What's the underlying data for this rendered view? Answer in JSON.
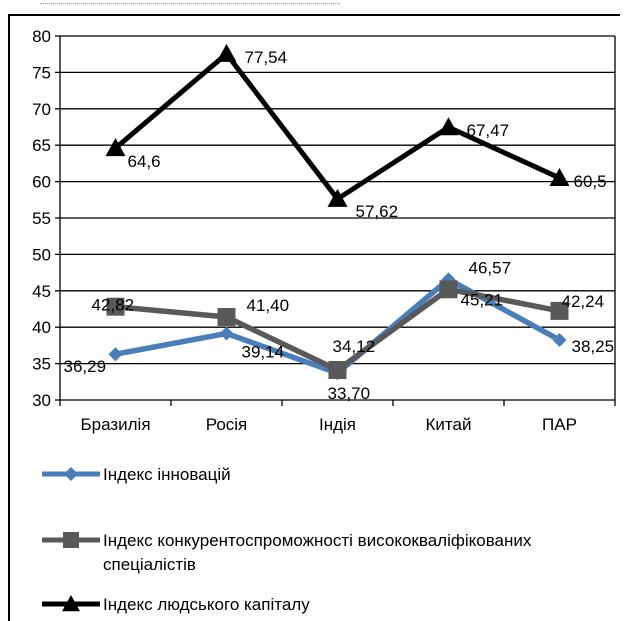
{
  "chart_data": {
    "type": "line",
    "categories": [
      "Бразилія",
      "Росія",
      "Індія",
      "Китай",
      "ПАР"
    ],
    "ylim": [
      30,
      80
    ],
    "yticks": [
      30,
      35,
      40,
      45,
      50,
      55,
      60,
      65,
      70,
      75,
      80
    ],
    "grid": true,
    "legend_position": "bottom",
    "series": [
      {
        "name": "Індекс інновацій",
        "values": [
          36.29,
          39.14,
          33.7,
          46.57,
          38.25
        ],
        "labels": [
          "36,29",
          "39,14",
          "33,70",
          "46,57",
          "38,25"
        ],
        "color": "#4a7ebb",
        "marker": "diamond"
      },
      {
        "name": "Індекс конкурентоспроможності висококваліфікованих спеціалістів",
        "values": [
          42.82,
          41.4,
          34.12,
          45.21,
          42.24
        ],
        "labels": [
          "42,82",
          "41,40",
          "34,12",
          "45,21",
          "42,24"
        ],
        "color": "#595959",
        "marker": "square"
      },
      {
        "name": "Індекс людського капіталу",
        "values": [
          64.6,
          77.54,
          57.62,
          67.47,
          60.5
        ],
        "labels": [
          "64,6",
          "77,54",
          "57,62",
          "67,47",
          "60,5"
        ],
        "color": "#000000",
        "marker": "triangle"
      }
    ],
    "legend_name_lines": [
      [
        "Індекс інновацій"
      ],
      [
        "Індекс конкурентоспроможності висококваліфікованих",
        "спеціалістів"
      ],
      [
        "Індекс людського капіталу"
      ]
    ]
  }
}
